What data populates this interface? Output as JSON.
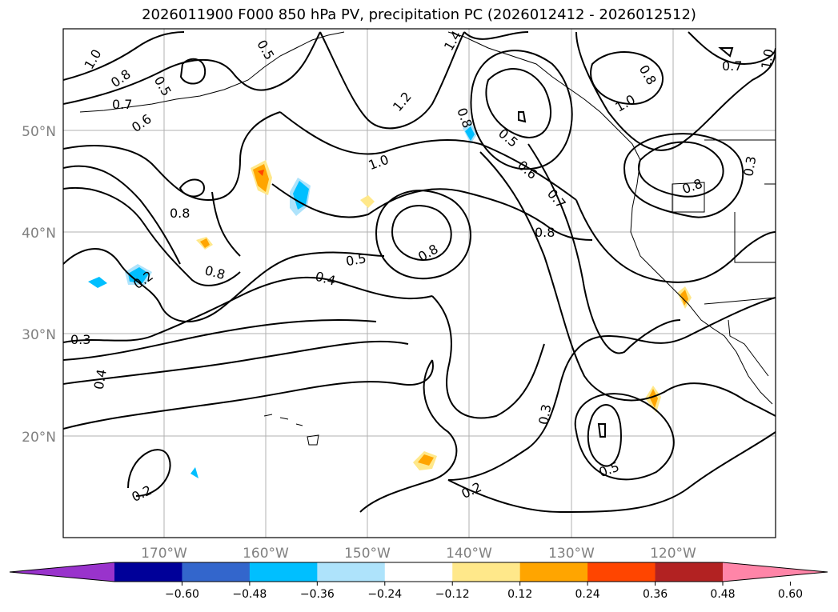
{
  "title": "2026011900 F000 850 hPa PV, precipitation PC (2026012412 - 2026012512)",
  "lat_labels": [
    "50°N",
    "40°N",
    "30°N",
    "20°N"
  ],
  "lon_labels": [
    "170°W",
    "160°W",
    "150°W",
    "140°W",
    "130°W",
    "120°W"
  ],
  "colorbar": {
    "ticks": [
      "−0.60",
      "−0.48",
      "−0.36",
      "−0.24",
      "−0.12",
      "0.12",
      "0.24",
      "0.36",
      "0.48",
      "0.60"
    ],
    "colors": [
      "#9933cc",
      "#000099",
      "#3366cc",
      "#00bfff",
      "#aee3fb",
      "#ffffff",
      "#ffe88a",
      "#ffa500",
      "#ff4500",
      "#b22222",
      "#ff85a8"
    ]
  },
  "contour_labels": [
    {
      "text": "1.0"
    },
    {
      "text": "0.8"
    },
    {
      "text": "0.7"
    },
    {
      "text": "0.6"
    },
    {
      "text": "0.5"
    },
    {
      "text": "0.5"
    },
    {
      "text": "1.4"
    },
    {
      "text": "1.2"
    },
    {
      "text": "1.0"
    },
    {
      "text": "0.8"
    },
    {
      "text": "0.5"
    },
    {
      "text": "0.6"
    },
    {
      "text": "0.7"
    },
    {
      "text": "0.8"
    },
    {
      "text": "0.8"
    },
    {
      "text": "0.5"
    },
    {
      "text": "0.8"
    },
    {
      "text": "0.4"
    },
    {
      "text": "0.2"
    },
    {
      "text": "0.8"
    },
    {
      "text": "0.3"
    },
    {
      "text": "0.4"
    },
    {
      "text": "0.3"
    },
    {
      "text": "0.5"
    },
    {
      "text": "0.2"
    },
    {
      "text": "0.2"
    },
    {
      "text": "0.8"
    },
    {
      "text": "0.3"
    },
    {
      "text": "0.8"
    },
    {
      "text": "0.7"
    },
    {
      "text": "1.0"
    },
    {
      "text": "1.0"
    }
  ]
}
